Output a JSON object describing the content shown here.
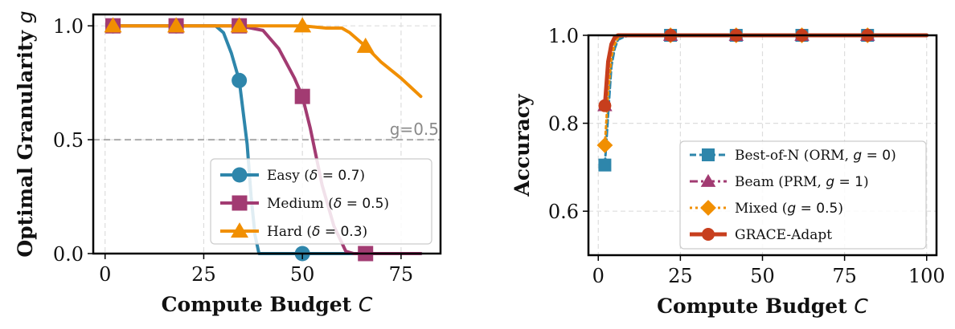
{
  "colors": {
    "easy": "#2e86ab",
    "medium": "#a23b72",
    "hard": "#f18f01",
    "best_of_n": "#2e86ab",
    "beam": "#a23b72",
    "mixed": "#f18f01",
    "grace": "#c73e1d",
    "reference": "#aaaaaa",
    "grid": "#dddddd"
  },
  "chart_data": [
    {
      "type": "line",
      "xlabel": "Compute Budget C",
      "ylabel": "Optimal Granularity g",
      "xlim": [
        -3,
        85
      ],
      "ylim": [
        0,
        1.05
      ],
      "xticks": [
        "0",
        "25",
        "50",
        "75"
      ],
      "yticks": [
        "0.0",
        "0.5",
        "1.0"
      ],
      "grid": true,
      "legend_position": "lower-right",
      "annotation": "g=0.5",
      "reference_line": 0.5,
      "series": [
        {
          "name": "Easy (δ = 0.7)",
          "marker": "circle",
          "x": [
            2,
            18,
            28,
            30,
            32,
            34,
            36,
            37,
            38,
            39,
            40,
            50,
            66,
            80
          ],
          "y": [
            1.0,
            1.0,
            1.0,
            0.97,
            0.88,
            0.76,
            0.48,
            0.25,
            0.08,
            0.0,
            0.0,
            0.0,
            0.0,
            0.0
          ],
          "marker_x": [
            2,
            18,
            34,
            50,
            66
          ]
        },
        {
          "name": "Medium (δ = 0.5)",
          "marker": "square",
          "x": [
            2,
            18,
            34,
            40,
            44,
            48,
            50,
            52,
            55,
            58,
            61,
            63,
            66,
            80
          ],
          "y": [
            1.0,
            1.0,
            1.0,
            0.98,
            0.9,
            0.77,
            0.69,
            0.55,
            0.3,
            0.12,
            0.01,
            0.0,
            0.0,
            0.0
          ],
          "marker_x": [
            2,
            18,
            34,
            50,
            66
          ]
        },
        {
          "name": "Hard (δ = 0.3)",
          "marker": "triangle",
          "x": [
            2,
            18,
            34,
            50,
            56,
            60,
            62,
            66,
            70,
            75,
            80
          ],
          "y": [
            1.0,
            1.0,
            1.0,
            1.0,
            0.99,
            0.99,
            0.97,
            0.91,
            0.84,
            0.77,
            0.69
          ],
          "marker_x": [
            2,
            18,
            34,
            50,
            66
          ]
        }
      ]
    },
    {
      "type": "line",
      "xlabel": "Compute Budget C",
      "ylabel": "Accuracy",
      "xlim": [
        -3,
        103
      ],
      "ylim": [
        0.5,
        1.0
      ],
      "xticks": [
        "0",
        "25",
        "50",
        "75",
        "100"
      ],
      "yticks": [
        "0.6",
        "0.8",
        "1.0"
      ],
      "grid": true,
      "legend_position": "lower-right",
      "series": [
        {
          "name": "Best-of-N (ORM, g = 0)",
          "marker": "square",
          "x": [
            2,
            3,
            4,
            5,
            6,
            8,
            10,
            22,
            42,
            62,
            82,
            100
          ],
          "y": [
            0.705,
            0.82,
            0.93,
            0.97,
            0.99,
            0.997,
            1.0,
            1.0,
            1.0,
            1.0,
            1.0,
            1.0
          ],
          "marker_x": [
            2,
            22,
            42,
            62,
            82
          ]
        },
        {
          "name": "Beam (PRM, g = 1)",
          "marker": "triangle",
          "x": [
            2,
            3,
            4,
            5,
            6,
            8,
            10,
            22,
            42,
            62,
            82,
            100
          ],
          "y": [
            0.84,
            0.93,
            0.97,
            0.99,
            0.997,
            1.0,
            1.0,
            1.0,
            1.0,
            1.0,
            1.0,
            1.0
          ],
          "marker_x": [
            2,
            22,
            42,
            62,
            82
          ]
        },
        {
          "name": "Mixed (g = 0.5)",
          "marker": "diamond",
          "x": [
            2,
            3,
            4,
            5,
            6,
            8,
            10,
            22,
            42,
            62,
            82,
            100
          ],
          "y": [
            0.75,
            0.87,
            0.95,
            0.98,
            0.995,
            1.0,
            1.0,
            1.0,
            1.0,
            1.0,
            1.0,
            1.0
          ],
          "marker_x": [
            2,
            22,
            42,
            62,
            82
          ]
        },
        {
          "name": "GRACE-Adapt",
          "marker": "circle",
          "x": [
            2,
            3,
            4,
            5,
            6,
            8,
            10,
            22,
            42,
            62,
            82,
            100
          ],
          "y": [
            0.84,
            0.94,
            0.98,
            0.995,
            1.0,
            1.0,
            1.0,
            1.0,
            1.0,
            1.0,
            1.0,
            1.0
          ],
          "marker_x": [
            2,
            22,
            42,
            62,
            82
          ]
        }
      ]
    }
  ]
}
